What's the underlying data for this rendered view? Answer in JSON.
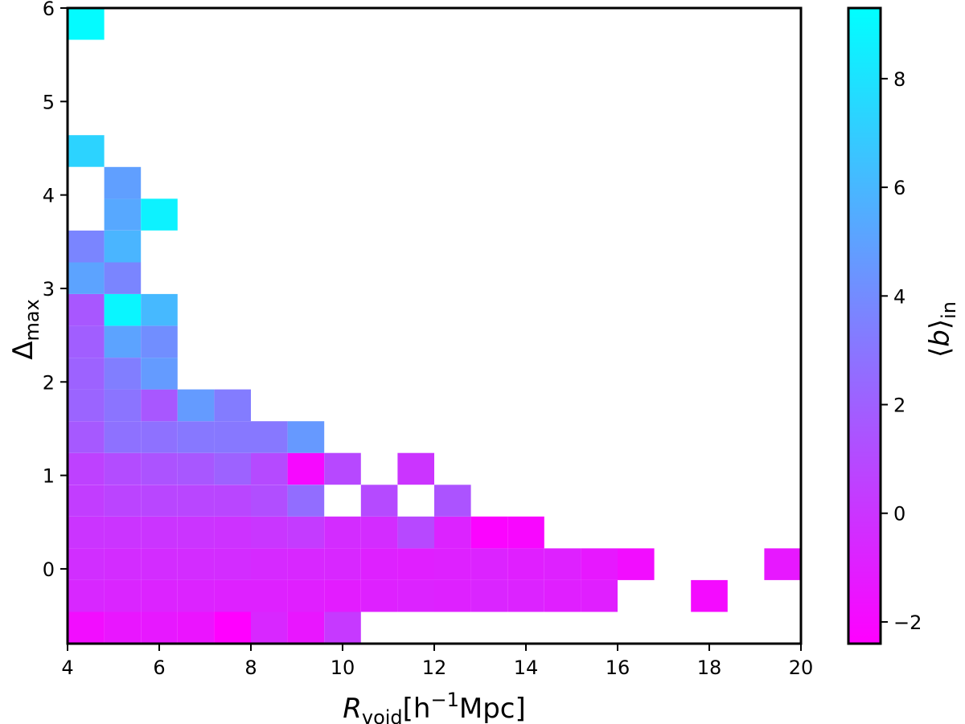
{
  "chart_data": {
    "type": "heatmap",
    "xlabel": {
      "main": "R",
      "sub": "void",
      "rest": "[h",
      "sup": "−1",
      "unit": "Mpc]"
    },
    "ylabel": {
      "main": "Δ",
      "sub": "max"
    },
    "colorbar_label": {
      "open": "⟨",
      "main": "b",
      "close": "⟩",
      "sub": "in"
    },
    "xlim": [
      4,
      20
    ],
    "ylim": [
      -0.8,
      6
    ],
    "x_ticks": [
      "4",
      "6",
      "8",
      "10",
      "12",
      "14",
      "16",
      "18",
      "20"
    ],
    "y_ticks": [
      "0",
      "1",
      "2",
      "3",
      "4",
      "5",
      "6"
    ],
    "colorbar_ticks": [
      "−2",
      "0",
      "2",
      "4",
      "6",
      "8"
    ],
    "colorbar_range": [
      -2.4,
      9.3
    ],
    "colormap": [
      "#ff00ff",
      "#00ffff"
    ],
    "grid": false,
    "bin_width": 0.8,
    "bin_height": 0.34,
    "cells": [
      {
        "x": 4.0,
        "y": -0.8,
        "v": -1.8
      },
      {
        "x": 4.8,
        "y": -0.8,
        "v": -1.4
      },
      {
        "x": 5.6,
        "y": -0.8,
        "v": -1.3
      },
      {
        "x": 6.4,
        "y": -0.8,
        "v": -1.5
      },
      {
        "x": 7.2,
        "y": -0.8,
        "v": -2.4
      },
      {
        "x": 8.0,
        "y": -0.8,
        "v": -0.6
      },
      {
        "x": 8.8,
        "y": -0.8,
        "v": -1.4
      },
      {
        "x": 9.6,
        "y": -0.8,
        "v": 0.2
      },
      {
        "x": 4.0,
        "y": -0.46,
        "v": -0.6
      },
      {
        "x": 4.8,
        "y": -0.46,
        "v": -0.7
      },
      {
        "x": 5.6,
        "y": -0.46,
        "v": -0.8
      },
      {
        "x": 6.4,
        "y": -0.46,
        "v": -0.8
      },
      {
        "x": 7.2,
        "y": -0.46,
        "v": -0.9
      },
      {
        "x": 8.0,
        "y": -0.46,
        "v": -0.9
      },
      {
        "x": 8.8,
        "y": -0.46,
        "v": -1.0
      },
      {
        "x": 9.6,
        "y": -0.46,
        "v": -1.1
      },
      {
        "x": 10.4,
        "y": -0.46,
        "v": -0.9
      },
      {
        "x": 11.2,
        "y": -0.46,
        "v": -0.8
      },
      {
        "x": 12.0,
        "y": -0.46,
        "v": -0.9
      },
      {
        "x": 12.8,
        "y": -0.46,
        "v": -0.7
      },
      {
        "x": 13.6,
        "y": -0.46,
        "v": -0.8
      },
      {
        "x": 14.4,
        "y": -0.46,
        "v": -1.0
      },
      {
        "x": 15.2,
        "y": -0.46,
        "v": -1.0
      },
      {
        "x": 17.6,
        "y": -0.46,
        "v": -1.9
      },
      {
        "x": 4.0,
        "y": -0.12,
        "v": -0.3
      },
      {
        "x": 4.8,
        "y": -0.12,
        "v": -0.4
      },
      {
        "x": 5.6,
        "y": -0.12,
        "v": -0.4
      },
      {
        "x": 6.4,
        "y": -0.12,
        "v": -0.4
      },
      {
        "x": 7.2,
        "y": -0.12,
        "v": -0.4
      },
      {
        "x": 8.0,
        "y": -0.12,
        "v": -0.5
      },
      {
        "x": 8.8,
        "y": -0.12,
        "v": -0.6
      },
      {
        "x": 9.6,
        "y": -0.12,
        "v": -0.6
      },
      {
        "x": 10.4,
        "y": -0.12,
        "v": -0.9
      },
      {
        "x": 11.2,
        "y": -0.12,
        "v": -1.0
      },
      {
        "x": 12.0,
        "y": -0.12,
        "v": -0.9
      },
      {
        "x": 12.8,
        "y": -0.12,
        "v": -0.8
      },
      {
        "x": 13.6,
        "y": -0.12,
        "v": -1.0
      },
      {
        "x": 14.4,
        "y": -0.12,
        "v": -0.9
      },
      {
        "x": 15.2,
        "y": -0.12,
        "v": -1.3
      },
      {
        "x": 16.0,
        "y": -0.12,
        "v": -1.8
      },
      {
        "x": 19.2,
        "y": -0.12,
        "v": -1.3
      },
      {
        "x": 4.0,
        "y": 0.22,
        "v": 0.0
      },
      {
        "x": 4.8,
        "y": 0.22,
        "v": 0.0
      },
      {
        "x": 5.6,
        "y": 0.22,
        "v": 0.0
      },
      {
        "x": 6.4,
        "y": 0.22,
        "v": 0.0
      },
      {
        "x": 7.2,
        "y": 0.22,
        "v": -0.1
      },
      {
        "x": 8.0,
        "y": 0.22,
        "v": 0.1
      },
      {
        "x": 8.8,
        "y": 0.22,
        "v": 0.3
      },
      {
        "x": 9.6,
        "y": 0.22,
        "v": -0.4
      },
      {
        "x": 10.4,
        "y": 0.22,
        "v": -0.4
      },
      {
        "x": 11.2,
        "y": 0.22,
        "v": 0.9
      },
      {
        "x": 12.0,
        "y": 0.22,
        "v": -0.8
      },
      {
        "x": 12.8,
        "y": 0.22,
        "v": -2.2
      },
      {
        "x": 13.6,
        "y": 0.22,
        "v": -2.1
      },
      {
        "x": 4.0,
        "y": 0.56,
        "v": 0.4
      },
      {
        "x": 4.8,
        "y": 0.56,
        "v": 0.7
      },
      {
        "x": 5.6,
        "y": 0.56,
        "v": 0.8
      },
      {
        "x": 6.4,
        "y": 0.56,
        "v": 0.8
      },
      {
        "x": 7.2,
        "y": 0.56,
        "v": 0.8
      },
      {
        "x": 8.0,
        "y": 0.56,
        "v": 1.2
      },
      {
        "x": 8.8,
        "y": 0.56,
        "v": 2.6
      },
      {
        "x": 10.4,
        "y": 0.56,
        "v": 1.0
      },
      {
        "x": 12.0,
        "y": 0.56,
        "v": 1.4
      },
      {
        "x": 4.0,
        "y": 0.9,
        "v": 0.6
      },
      {
        "x": 4.8,
        "y": 0.9,
        "v": 1.1
      },
      {
        "x": 5.6,
        "y": 0.9,
        "v": 1.4
      },
      {
        "x": 6.4,
        "y": 0.9,
        "v": 1.6
      },
      {
        "x": 7.2,
        "y": 0.9,
        "v": 2.1
      },
      {
        "x": 8.0,
        "y": 0.9,
        "v": 1.0
      },
      {
        "x": 8.8,
        "y": 0.9,
        "v": -2.0
      },
      {
        "x": 9.6,
        "y": 0.9,
        "v": 0.9
      },
      {
        "x": 11.2,
        "y": 0.9,
        "v": 0.0
      },
      {
        "x": 4.0,
        "y": 1.24,
        "v": 1.7
      },
      {
        "x": 4.8,
        "y": 1.24,
        "v": 2.8
      },
      {
        "x": 5.6,
        "y": 1.24,
        "v": 2.8
      },
      {
        "x": 6.4,
        "y": 1.24,
        "v": 3.1
      },
      {
        "x": 7.2,
        "y": 1.24,
        "v": 3.1
      },
      {
        "x": 8.0,
        "y": 1.24,
        "v": 3.1
      },
      {
        "x": 8.8,
        "y": 1.24,
        "v": 4.6
      },
      {
        "x": 4.0,
        "y": 1.58,
        "v": 2.2
      },
      {
        "x": 4.8,
        "y": 1.58,
        "v": 2.9
      },
      {
        "x": 5.6,
        "y": 1.58,
        "v": 1.6
      },
      {
        "x": 6.4,
        "y": 1.58,
        "v": 4.7
      },
      {
        "x": 7.2,
        "y": 1.58,
        "v": 3.3
      },
      {
        "x": 4.0,
        "y": 1.92,
        "v": 2.1
      },
      {
        "x": 4.8,
        "y": 1.92,
        "v": 3.4
      },
      {
        "x": 5.6,
        "y": 1.92,
        "v": 4.7
      },
      {
        "x": 4.0,
        "y": 2.26,
        "v": 1.9
      },
      {
        "x": 4.8,
        "y": 2.26,
        "v": 5.1
      },
      {
        "x": 5.6,
        "y": 2.26,
        "v": 4.1
      },
      {
        "x": 4.0,
        "y": 2.6,
        "v": 1.6
      },
      {
        "x": 4.8,
        "y": 2.6,
        "v": 8.9
      },
      {
        "x": 5.6,
        "y": 2.6,
        "v": 6.1
      },
      {
        "x": 4.0,
        "y": 2.94,
        "v": 5.1
      },
      {
        "x": 4.8,
        "y": 2.94,
        "v": 3.7
      },
      {
        "x": 4.0,
        "y": 3.28,
        "v": 3.7
      },
      {
        "x": 4.8,
        "y": 3.28,
        "v": 5.9
      },
      {
        "x": 4.8,
        "y": 3.62,
        "v": 5.3
      },
      {
        "x": 5.6,
        "y": 3.62,
        "v": 8.7
      },
      {
        "x": 4.8,
        "y": 3.96,
        "v": 4.9
      },
      {
        "x": 4.0,
        "y": 4.3,
        "v": 7.3
      },
      {
        "x": 4.0,
        "y": 5.66,
        "v": 9.1
      }
    ]
  }
}
